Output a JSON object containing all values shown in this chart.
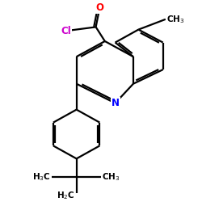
{
  "background_color": "#ffffff",
  "atom_colors": {
    "O": "#ff0000",
    "Cl": "#cc00cc",
    "N": "#0000ff",
    "C": "#000000"
  },
  "lw": 1.6,
  "bl": 1.0,
  "figsize": [
    2.5,
    2.5
  ],
  "dpi": 100,
  "xlim": [
    0,
    10
  ],
  "ylim": [
    0,
    10
  ]
}
